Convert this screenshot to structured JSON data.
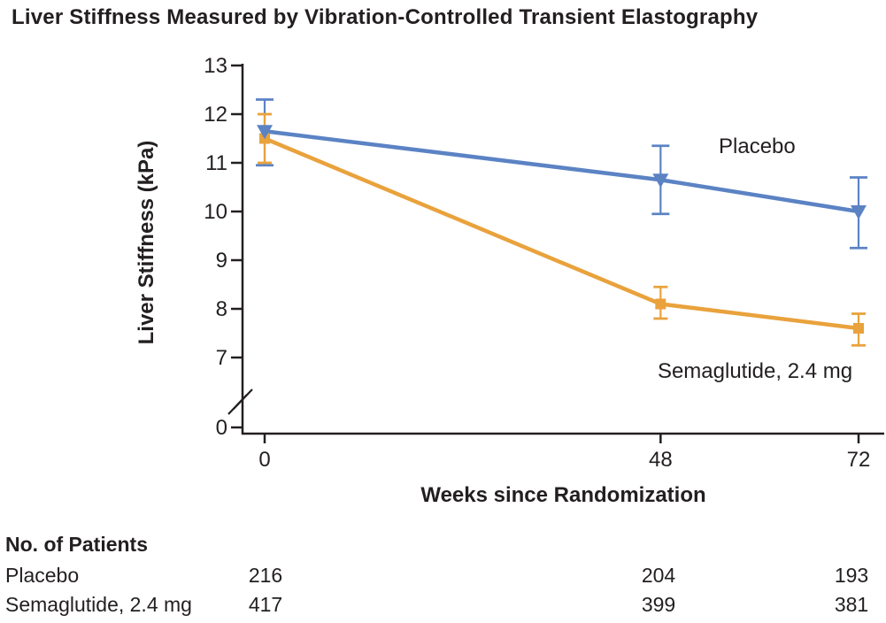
{
  "title": "Liver Stiffness Measured by Vibration-Controlled Transient Elastography",
  "colors": {
    "placebo": "#5b83c4",
    "semaglutide": "#e9a23c",
    "axis": "#231f20",
    "text": "#231f20"
  },
  "chart_data": {
    "type": "line",
    "title": "Liver Stiffness Measured by Vibration-Controlled Transient Elastography",
    "xlabel": "Weeks since Randomization",
    "ylabel": "Liver Stiffness (kPa)",
    "x": [
      0,
      48,
      72
    ],
    "xticks": [
      "0",
      "48",
      "72"
    ],
    "yticks": [
      13,
      12,
      11,
      10,
      9,
      8,
      7,
      0
    ],
    "ylim_main": [
      7,
      13
    ],
    "axis_break": true,
    "grid": false,
    "legend_position": "inline-annotations",
    "series": [
      {
        "name": "Placebo",
        "color": "#5b83c4",
        "marker": "triangle-down",
        "values": [
          11.65,
          10.65,
          10.0
        ],
        "err_low": [
          10.95,
          9.95,
          9.25
        ],
        "err_high": [
          12.3,
          11.35,
          10.7
        ]
      },
      {
        "name": "Semaglutide, 2.4 mg",
        "color": "#e9a23c",
        "marker": "square",
        "values": [
          11.5,
          8.1,
          7.6
        ],
        "err_low": [
          11.0,
          7.8,
          7.25
        ],
        "err_high": [
          12.0,
          8.45,
          7.9
        ]
      }
    ]
  },
  "patients_table": {
    "header": "No. of Patients",
    "rows": [
      {
        "label": "Placebo",
        "values": [
          "216",
          "204",
          "193"
        ]
      },
      {
        "label": "Semaglutide, 2.4 mg",
        "values": [
          "417",
          "399",
          "381"
        ]
      }
    ]
  }
}
